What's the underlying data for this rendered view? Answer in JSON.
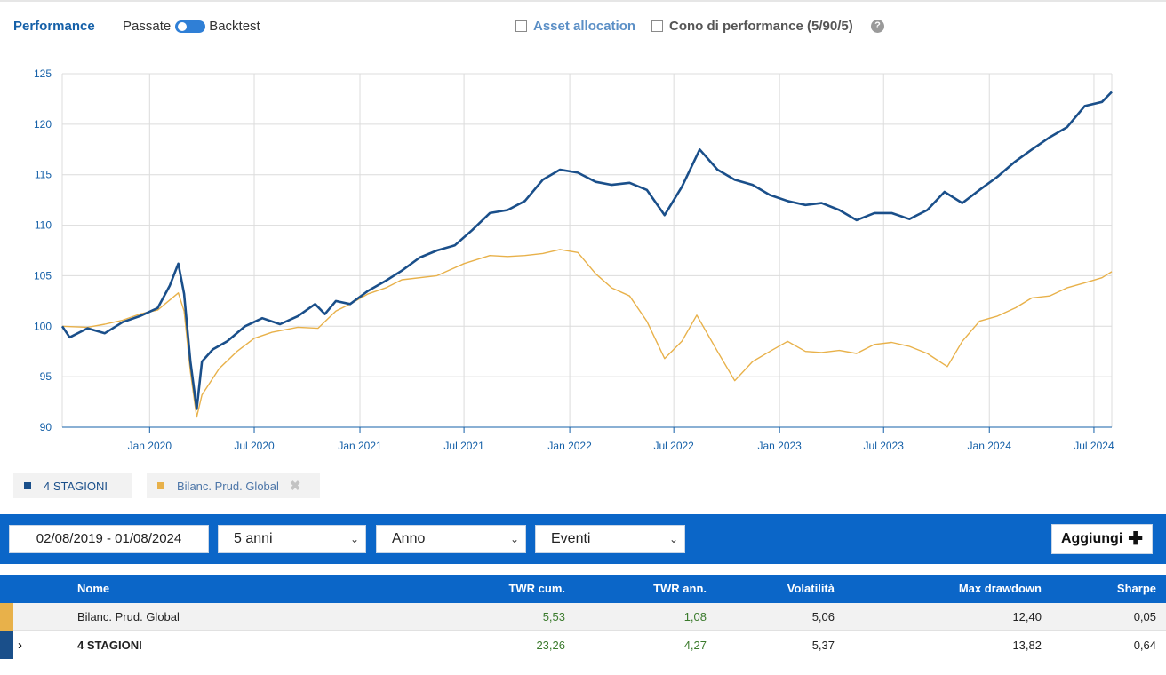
{
  "header": {
    "title": "Performance",
    "toggle_left": "Passate",
    "toggle_right": "Backtest",
    "asset_allocation": "Asset allocation",
    "cono": "Cono di performance (5/90/5)",
    "help": "?"
  },
  "legend": [
    {
      "label": "4 STAGIONI",
      "color": "#1a4f8a"
    },
    {
      "label": "Bilanc. Prud. Global",
      "color": "#e8b14a",
      "remove": "✖"
    }
  ],
  "controls": {
    "date_range": "02/08/2019 - 01/08/2024",
    "period": "5 anni",
    "frequency": "Anno",
    "events": "Eventi",
    "add_label": "Aggiungi",
    "add_icon": "✚",
    "chevron": "⌄"
  },
  "table": {
    "headers": {
      "name": "Nome",
      "twr_cum": "TWR cum.",
      "twr_ann": "TWR ann.",
      "vol": "Volatilità",
      "max_dd": "Max drawdown",
      "sharpe": "Sharpe"
    },
    "rows": [
      {
        "color": "#e8b14a",
        "name": "Bilanc. Prud. Global",
        "twr_cum": "5,53",
        "twr_ann": "1,08",
        "vol": "5,06",
        "max_dd": "12,40",
        "sharpe": "0,05"
      },
      {
        "color": "#1a4f8a",
        "expand": "›",
        "name": "4 STAGIONI",
        "twr_cum": "23,26",
        "twr_ann": "4,27",
        "vol": "5,37",
        "max_dd": "13,82",
        "sharpe": "0,64"
      }
    ]
  },
  "chart_data": {
    "type": "line",
    "title": "",
    "xlabel": "",
    "ylabel": "",
    "ylim": [
      90,
      125
    ],
    "yticks": [
      90,
      95,
      100,
      105,
      110,
      115,
      120,
      125
    ],
    "xlim": [
      "2019-08-02",
      "2024-08-01"
    ],
    "xticks": [
      {
        "date": "2020-01-01",
        "label": "Jan 2020"
      },
      {
        "date": "2020-07-01",
        "label": "Jul 2020"
      },
      {
        "date": "2021-01-01",
        "label": "Jan 2021"
      },
      {
        "date": "2021-07-01",
        "label": "Jul 2021"
      },
      {
        "date": "2022-01-01",
        "label": "Jan 2022"
      },
      {
        "date": "2022-07-01",
        "label": "Jul 2022"
      },
      {
        "date": "2023-01-01",
        "label": "Jan 2023"
      },
      {
        "date": "2023-07-01",
        "label": "Jul 2023"
      },
      {
        "date": "2024-01-01",
        "label": "Jan 2024"
      },
      {
        "date": "2024-07-01",
        "label": "Jul 2024"
      }
    ],
    "grid": true,
    "legend": "bottom-left",
    "series": [
      {
        "name": "4 STAGIONI",
        "color": "#1a4f8a",
        "points": [
          [
            "2019-08-02",
            100
          ],
          [
            "2019-08-15",
            98.9
          ],
          [
            "2019-09-15",
            99.8
          ],
          [
            "2019-10-15",
            99.3
          ],
          [
            "2019-11-15",
            100.4
          ],
          [
            "2019-12-15",
            101.0
          ],
          [
            "2020-01-15",
            101.8
          ],
          [
            "2020-02-05",
            104.0
          ],
          [
            "2020-02-20",
            106.2
          ],
          [
            "2020-03-01",
            103.2
          ],
          [
            "2020-03-12",
            96.5
          ],
          [
            "2020-03-23",
            91.8
          ],
          [
            "2020-04-01",
            96.5
          ],
          [
            "2020-04-20",
            97.7
          ],
          [
            "2020-05-15",
            98.5
          ],
          [
            "2020-06-15",
            100.0
          ],
          [
            "2020-07-15",
            100.8
          ],
          [
            "2020-08-15",
            100.2
          ],
          [
            "2020-09-15",
            101.0
          ],
          [
            "2020-10-15",
            102.2
          ],
          [
            "2020-11-01",
            101.2
          ],
          [
            "2020-11-20",
            102.5
          ],
          [
            "2020-12-15",
            102.2
          ],
          [
            "2021-01-15",
            103.5
          ],
          [
            "2021-02-15",
            104.5
          ],
          [
            "2021-03-15",
            105.5
          ],
          [
            "2021-04-15",
            106.8
          ],
          [
            "2021-05-15",
            107.5
          ],
          [
            "2021-06-15",
            108.0
          ],
          [
            "2021-07-15",
            109.5
          ],
          [
            "2021-08-15",
            111.2
          ],
          [
            "2021-09-15",
            111.5
          ],
          [
            "2021-10-15",
            112.4
          ],
          [
            "2021-11-15",
            114.5
          ],
          [
            "2021-12-15",
            115.5
          ],
          [
            "2022-01-15",
            115.2
          ],
          [
            "2022-02-15",
            114.3
          ],
          [
            "2022-03-15",
            114.0
          ],
          [
            "2022-04-15",
            114.2
          ],
          [
            "2022-05-15",
            113.5
          ],
          [
            "2022-06-15",
            111.0
          ],
          [
            "2022-07-15",
            113.8
          ],
          [
            "2022-08-15",
            117.5
          ],
          [
            "2022-09-15",
            115.5
          ],
          [
            "2022-10-15",
            114.5
          ],
          [
            "2022-11-15",
            114.0
          ],
          [
            "2022-12-15",
            113.0
          ],
          [
            "2023-01-15",
            112.4
          ],
          [
            "2023-02-15",
            112.0
          ],
          [
            "2023-03-15",
            112.2
          ],
          [
            "2023-04-15",
            111.5
          ],
          [
            "2023-05-15",
            110.5
          ],
          [
            "2023-06-15",
            111.2
          ],
          [
            "2023-07-15",
            111.2
          ],
          [
            "2023-08-15",
            110.6
          ],
          [
            "2023-09-15",
            111.5
          ],
          [
            "2023-10-15",
            113.3
          ],
          [
            "2023-11-15",
            112.2
          ],
          [
            "2023-12-15",
            113.5
          ],
          [
            "2024-01-15",
            114.8
          ],
          [
            "2024-02-15",
            116.3
          ],
          [
            "2024-03-15",
            117.5
          ],
          [
            "2024-04-15",
            118.7
          ],
          [
            "2024-05-15",
            119.7
          ],
          [
            "2024-06-15",
            121.8
          ],
          [
            "2024-07-15",
            122.2
          ],
          [
            "2024-08-01",
            123.2
          ]
        ]
      },
      {
        "name": "Bilanc. Prud. Global",
        "color": "#e8b14a",
        "points": [
          [
            "2019-08-02",
            100
          ],
          [
            "2019-09-15",
            99.9
          ],
          [
            "2019-10-15",
            100.2
          ],
          [
            "2019-11-15",
            100.6
          ],
          [
            "2019-12-15",
            101.2
          ],
          [
            "2020-01-15",
            101.6
          ],
          [
            "2020-02-20",
            103.3
          ],
          [
            "2020-03-01",
            101.5
          ],
          [
            "2020-03-12",
            95.5
          ],
          [
            "2020-03-23",
            91.0
          ],
          [
            "2020-04-01",
            93.2
          ],
          [
            "2020-05-01",
            95.8
          ],
          [
            "2020-06-01",
            97.5
          ],
          [
            "2020-07-01",
            98.8
          ],
          [
            "2020-08-01",
            99.4
          ],
          [
            "2020-09-15",
            99.9
          ],
          [
            "2020-10-20",
            99.8
          ],
          [
            "2020-11-20",
            101.5
          ],
          [
            "2020-12-15",
            102.2
          ],
          [
            "2021-01-15",
            103.2
          ],
          [
            "2021-02-15",
            103.8
          ],
          [
            "2021-03-15",
            104.6
          ],
          [
            "2021-05-15",
            105.0
          ],
          [
            "2021-07-01",
            106.2
          ],
          [
            "2021-08-15",
            107.0
          ],
          [
            "2021-09-15",
            106.9
          ],
          [
            "2021-10-15",
            107.0
          ],
          [
            "2021-11-15",
            107.2
          ],
          [
            "2021-12-15",
            107.6
          ],
          [
            "2022-01-15",
            107.3
          ],
          [
            "2022-02-15",
            105.2
          ],
          [
            "2022-03-15",
            103.8
          ],
          [
            "2022-04-15",
            103.0
          ],
          [
            "2022-05-15",
            100.5
          ],
          [
            "2022-06-15",
            96.8
          ],
          [
            "2022-07-15",
            98.5
          ],
          [
            "2022-08-10",
            101.1
          ],
          [
            "2022-09-15",
            97.5
          ],
          [
            "2022-10-15",
            94.6
          ],
          [
            "2022-11-15",
            96.5
          ],
          [
            "2022-12-15",
            97.5
          ],
          [
            "2023-01-15",
            98.5
          ],
          [
            "2023-02-15",
            97.5
          ],
          [
            "2023-03-15",
            97.4
          ],
          [
            "2023-04-15",
            97.6
          ],
          [
            "2023-05-15",
            97.3
          ],
          [
            "2023-06-15",
            98.2
          ],
          [
            "2023-07-15",
            98.4
          ],
          [
            "2023-08-15",
            98.0
          ],
          [
            "2023-09-15",
            97.3
          ],
          [
            "2023-10-20",
            96.0
          ],
          [
            "2023-11-15",
            98.5
          ],
          [
            "2023-12-15",
            100.5
          ],
          [
            "2024-01-15",
            101.0
          ],
          [
            "2024-02-15",
            101.8
          ],
          [
            "2024-03-15",
            102.8
          ],
          [
            "2024-04-15",
            103.0
          ],
          [
            "2024-05-15",
            103.8
          ],
          [
            "2024-06-15",
            104.3
          ],
          [
            "2024-07-15",
            104.8
          ],
          [
            "2024-08-01",
            105.4
          ]
        ]
      }
    ]
  }
}
